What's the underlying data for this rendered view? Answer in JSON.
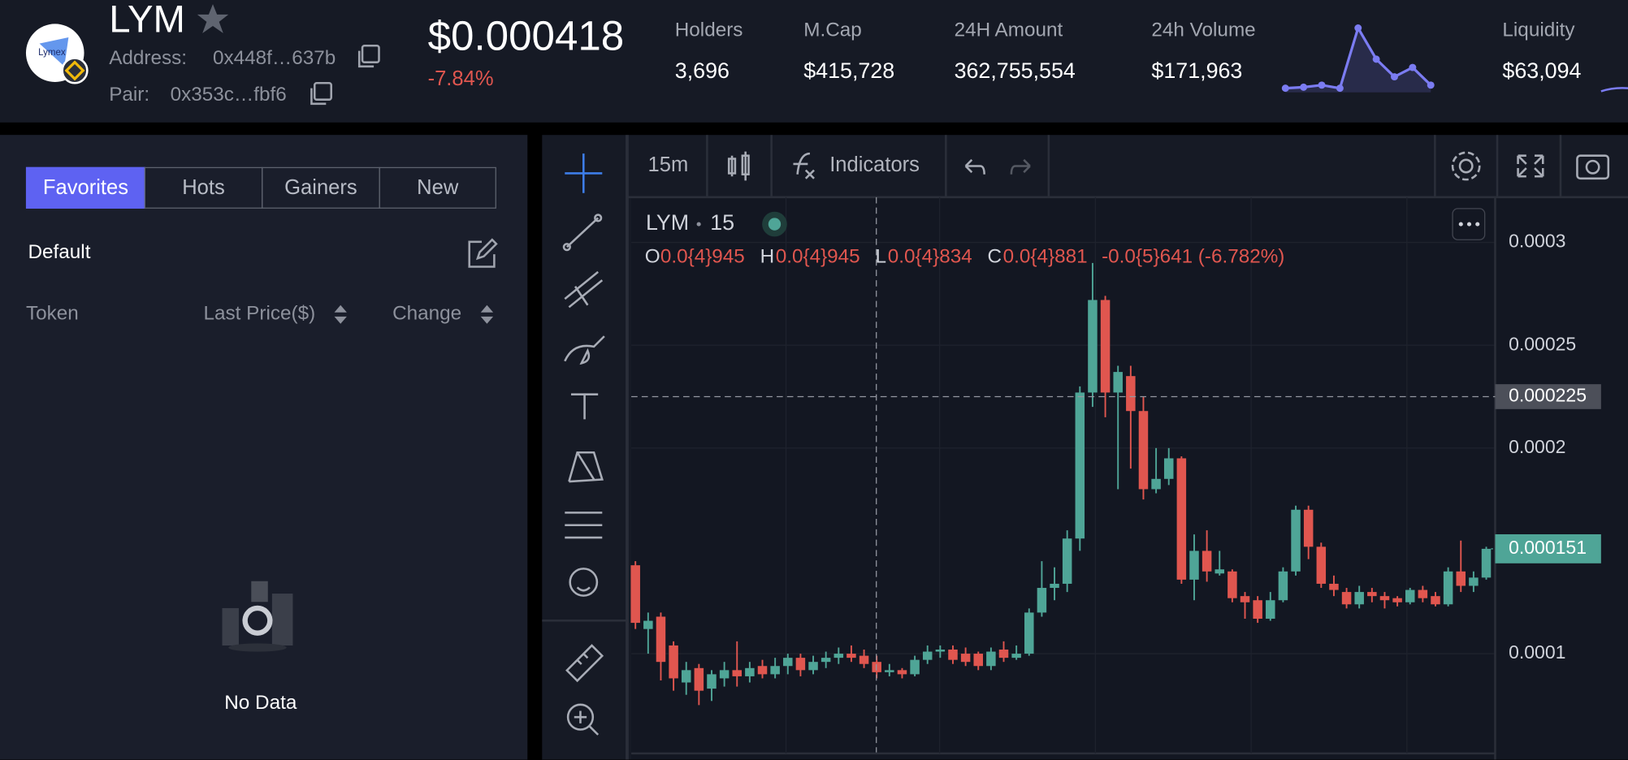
{
  "header": {
    "logo_text": "Lymex",
    "token": "LYM",
    "address_label": "Address:",
    "address": "0x448f…637b",
    "pair_label": "Pair:",
    "pair": "0x353c…fbf6",
    "price": "$0.000418",
    "change": "-7.84%",
    "stats": [
      {
        "label": "Holders",
        "value": "3,696"
      },
      {
        "label": "M.Cap",
        "value": "$415,728"
      },
      {
        "label": "24H Amount",
        "value": "362,755,554"
      },
      {
        "label": "24h Volume",
        "value": "$171,963"
      },
      {
        "label": "Liquidity",
        "value": "$63,094"
      }
    ],
    "sparkline": {
      "values": [
        2,
        3,
        5,
        2,
        60,
        30,
        13,
        22,
        5
      ],
      "color": "#7b7cf2"
    }
  },
  "sidebar": {
    "tabs": [
      "Favorites",
      "Hots",
      "Gainers",
      "New"
    ],
    "active_tab": 0,
    "group": "Default",
    "columns": [
      "Token",
      "Last Price($)",
      "Change"
    ],
    "empty": "No Data"
  },
  "toolbar": {
    "interval": "15m",
    "indicators": "Indicators"
  },
  "chart_data": {
    "type": "candlestick",
    "symbol": "LYM",
    "interval": "15",
    "legend": [
      {
        "label": "O",
        "value": "0.0{4}945"
      },
      {
        "label": "H",
        "value": "0.0{4}945"
      },
      {
        "label": "L",
        "value": "0.0{4}834"
      },
      {
        "label": "C",
        "value": "0.0{4}881"
      }
    ],
    "legend_change": "-0.0{5}641 (-6.782%)",
    "ylim": [
      5.2e-05,
      0.000322
    ],
    "yticks": [
      0.0001,
      0.0002,
      0.00025,
      0.0003
    ],
    "crosshair_price": 0.000225,
    "last_price": 0.000151,
    "up_color": "#4fa597",
    "down_color": "#e0564f",
    "candles": [
      {
        "o": 0.000143,
        "h": 0.000145,
        "l": 0.000112,
        "c": 0.000115
      },
      {
        "o": 0.000112,
        "h": 0.00012,
        "l": 0.0001,
        "c": 0.000116
      },
      {
        "o": 0.000118,
        "h": 0.00012,
        "l": 8.7e-05,
        "c": 9.6e-05
      },
      {
        "o": 0.000104,
        "h": 0.000106,
        "l": 8.2e-05,
        "c": 8.8e-05
      },
      {
        "o": 8.6e-05,
        "h": 9.6e-05,
        "l": 8e-05,
        "c": 9.2e-05
      },
      {
        "o": 9.3e-05,
        "h": 9.5e-05,
        "l": 7.5e-05,
        "c": 8.2e-05
      },
      {
        "o": 8.3e-05,
        "h": 9.2e-05,
        "l": 7.7e-05,
        "c": 9e-05
      },
      {
        "o": 8.8e-05,
        "h": 9.6e-05,
        "l": 8.4e-05,
        "c": 9.2e-05
      },
      {
        "o": 9.2e-05,
        "h": 0.000106,
        "l": 8.4e-05,
        "c": 8.9e-05
      },
      {
        "o": 8.9e-05,
        "h": 9.6e-05,
        "l": 8.6e-05,
        "c": 9.3e-05
      },
      {
        "o": 9.4e-05,
        "h": 9.7e-05,
        "l": 8.8e-05,
        "c": 9e-05
      },
      {
        "o": 9e-05,
        "h": 9.8e-05,
        "l": 8.8e-05,
        "c": 9.4e-05
      },
      {
        "o": 9.4e-05,
        "h": 0.0001,
        "l": 9e-05,
        "c": 9.8e-05
      },
      {
        "o": 9.8e-05,
        "h": 0.0001,
        "l": 8.9e-05,
        "c": 9.2e-05
      },
      {
        "o": 9.2e-05,
        "h": 9.9e-05,
        "l": 9e-05,
        "c": 9.6e-05
      },
      {
        "o": 9.6e-05,
        "h": 0.000101,
        "l": 9.3e-05,
        "c": 9.8e-05
      },
      {
        "o": 9.8e-05,
        "h": 0.000103,
        "l": 9.5e-05,
        "c": 0.0001
      },
      {
        "o": 0.0001,
        "h": 0.000104,
        "l": 9.6e-05,
        "c": 9.8e-05
      },
      {
        "o": 9.9e-05,
        "h": 0.000102,
        "l": 9.3e-05,
        "c": 9.5e-05
      },
      {
        "o": 9.6e-05,
        "h": 9.9e-05,
        "l": 8.8e-05,
        "c": 9.1e-05
      },
      {
        "o": 9.1e-05,
        "h": 9.5e-05,
        "l": 8.9e-05,
        "c": 9.2e-05
      },
      {
        "o": 9.2e-05,
        "h": 9.3e-05,
        "l": 8.8e-05,
        "c": 9e-05
      },
      {
        "o": 9e-05,
        "h": 9.9e-05,
        "l": 8.9e-05,
        "c": 9.7e-05
      },
      {
        "o": 9.7e-05,
        "h": 0.000104,
        "l": 9.5e-05,
        "c": 0.000101
      },
      {
        "o": 0.000101,
        "h": 0.000104,
        "l": 9.8e-05,
        "c": 0.000102
      },
      {
        "o": 0.000102,
        "h": 0.000104,
        "l": 9.5e-05,
        "c": 9.7e-05
      },
      {
        "o": 0.0001,
        "h": 0.000103,
        "l": 9.4e-05,
        "c": 9.6e-05
      },
      {
        "o": 0.0001,
        "h": 0.000101,
        "l": 9.2e-05,
        "c": 9.4e-05
      },
      {
        "o": 9.4e-05,
        "h": 0.000103,
        "l": 9.2e-05,
        "c": 0.000101
      },
      {
        "o": 0.000102,
        "h": 0.000106,
        "l": 9.6e-05,
        "c": 9.8e-05
      },
      {
        "o": 9.8e-05,
        "h": 0.000104,
        "l": 9.7e-05,
        "c": 0.0001
      },
      {
        "o": 0.0001,
        "h": 0.000122,
        "l": 9.9e-05,
        "c": 0.00012
      },
      {
        "o": 0.00012,
        "h": 0.000145,
        "l": 0.000118,
        "c": 0.000132
      },
      {
        "o": 0.000132,
        "h": 0.000142,
        "l": 0.000126,
        "c": 0.000134
      },
      {
        "o": 0.000134,
        "h": 0.00016,
        "l": 0.00013,
        "c": 0.000156
      },
      {
        "o": 0.000156,
        "h": 0.00023,
        "l": 0.00015,
        "c": 0.000227
      },
      {
        "o": 0.000227,
        "h": 0.00029,
        "l": 0.00022,
        "c": 0.000272
      },
      {
        "o": 0.000272,
        "h": 0.000274,
        "l": 0.000215,
        "c": 0.000227
      },
      {
        "o": 0.000227,
        "h": 0.00024,
        "l": 0.00018,
        "c": 0.000237
      },
      {
        "o": 0.000235,
        "h": 0.00024,
        "l": 0.00019,
        "c": 0.000218
      },
      {
        "o": 0.000218,
        "h": 0.000225,
        "l": 0.000175,
        "c": 0.00018
      },
      {
        "o": 0.00018,
        "h": 0.0002,
        "l": 0.000178,
        "c": 0.000185
      },
      {
        "o": 0.000185,
        "h": 0.0002,
        "l": 0.000182,
        "c": 0.000195
      },
      {
        "o": 0.000195,
        "h": 0.000196,
        "l": 0.000134,
        "c": 0.000136
      },
      {
        "o": 0.000136,
        "h": 0.000158,
        "l": 0.000126,
        "c": 0.00015
      },
      {
        "o": 0.00015,
        "h": 0.00016,
        "l": 0.000135,
        "c": 0.00014
      },
      {
        "o": 0.000139,
        "h": 0.00015,
        "l": 0.000138,
        "c": 0.000141
      },
      {
        "o": 0.00014,
        "h": 0.000141,
        "l": 0.000125,
        "c": 0.000127
      },
      {
        "o": 0.000128,
        "h": 0.00013,
        "l": 0.000117,
        "c": 0.000125
      },
      {
        "o": 0.000126,
        "h": 0.000128,
        "l": 0.000115,
        "c": 0.000117
      },
      {
        "o": 0.000117,
        "h": 0.00013,
        "l": 0.000116,
        "c": 0.000126
      },
      {
        "o": 0.000126,
        "h": 0.000142,
        "l": 0.000125,
        "c": 0.00014
      },
      {
        "o": 0.00014,
        "h": 0.000172,
        "l": 0.000138,
        "c": 0.00017
      },
      {
        "o": 0.00017,
        "h": 0.000172,
        "l": 0.000146,
        "c": 0.000152
      },
      {
        "o": 0.000152,
        "h": 0.000154,
        "l": 0.000132,
        "c": 0.000134
      },
      {
        "o": 0.000134,
        "h": 0.000138,
        "l": 0.000128,
        "c": 0.000131
      },
      {
        "o": 0.00013,
        "h": 0.000132,
        "l": 0.000122,
        "c": 0.000124
      },
      {
        "o": 0.000124,
        "h": 0.000133,
        "l": 0.000122,
        "c": 0.00013
      },
      {
        "o": 0.00013,
        "h": 0.000132,
        "l": 0.000125,
        "c": 0.000128
      },
      {
        "o": 0.000128,
        "h": 0.00013,
        "l": 0.000122,
        "c": 0.000126
      },
      {
        "o": 0.000127,
        "h": 0.000128,
        "l": 0.000123,
        "c": 0.000125
      },
      {
        "o": 0.000125,
        "h": 0.000132,
        "l": 0.000124,
        "c": 0.000131
      },
      {
        "o": 0.000131,
        "h": 0.000133,
        "l": 0.000125,
        "c": 0.000127
      },
      {
        "o": 0.000128,
        "h": 0.00013,
        "l": 0.000123,
        "c": 0.000124
      },
      {
        "o": 0.000124,
        "h": 0.000142,
        "l": 0.000123,
        "c": 0.00014
      },
      {
        "o": 0.00014,
        "h": 0.000155,
        "l": 0.00013,
        "c": 0.000133
      },
      {
        "o": 0.000133,
        "h": 0.00014,
        "l": 0.00013,
        "c": 0.000137
      },
      {
        "o": 0.000137,
        "h": 0.000152,
        "l": 0.000136,
        "c": 0.000151
      }
    ]
  }
}
